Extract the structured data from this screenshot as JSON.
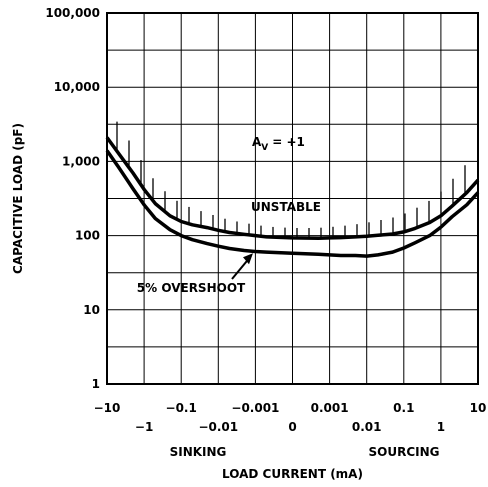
{
  "chart_data": {
    "type": "line",
    "title": "",
    "xlabel": "LOAD CURRENT (mA)",
    "ylabel": "CAPACITIVE LOAD (pF)",
    "x_scale": "signed-log",
    "y_scale": "log",
    "ylim": [
      1,
      100000
    ],
    "xlim": [
      -10,
      10
    ],
    "grid": true,
    "x_tick_labels_row1": [
      "-10",
      "-0.1",
      "-0.001",
      "0.001",
      "0.1",
      "10"
    ],
    "x_tick_labels_row2": [
      "-1",
      "-0.01",
      "0",
      "0.01",
      "1"
    ],
    "y_tick_labels": [
      "1",
      "10",
      "100",
      "1,000",
      "10,000",
      "100,000"
    ],
    "x_region_labels": [
      "SINKING",
      "SOURCING"
    ],
    "annotations": {
      "gain": "A",
      "gain_sub": "V",
      "gain_value": "= +1",
      "unstable": "UNSTABLE",
      "overshoot": "5% OVERSHOOT"
    },
    "series": [
      {
        "x": [
          -10,
          -5,
          -2,
          -1,
          -0.5,
          -0.2,
          -0.1,
          -0.05,
          -0.02,
          -0.01,
          -0.005,
          -0.002,
          -0.001,
          -0.0005,
          0,
          0.0005,
          0.001,
          0.002,
          0.005,
          0.01,
          0.02,
          0.05,
          0.1,
          0.2,
          0.5,
          1,
          2,
          5,
          10
        ],
        "values": [
          2100,
          1300,
          700,
          420,
          270,
          185,
          155,
          140,
          128,
          118,
          110,
          104,
          100,
          96,
          93,
          92,
          93,
          94,
          96,
          98,
          101,
          105,
          112,
          125,
          150,
          185,
          250,
          380,
          560
        ]
      },
      {
        "x": [
          -10,
          -5,
          -2,
          -1,
          -0.5,
          -0.2,
          -0.1,
          -0.05,
          -0.02,
          -0.01,
          -0.005,
          -0.002,
          -0.001,
          -0.0005,
          0,
          0.0005,
          0.001,
          0.002,
          0.005,
          0.01,
          0.02,
          0.05,
          0.1,
          0.2,
          0.5,
          1,
          2,
          5,
          10
        ],
        "values": [
          1400,
          850,
          430,
          260,
          170,
          120,
          100,
          88,
          78,
          72,
          67,
          63,
          61,
          60,
          58,
          56,
          55,
          54,
          54,
          53,
          55,
          60,
          68,
          80,
          100,
          130,
          180,
          260,
          380
        ]
      }
    ]
  }
}
